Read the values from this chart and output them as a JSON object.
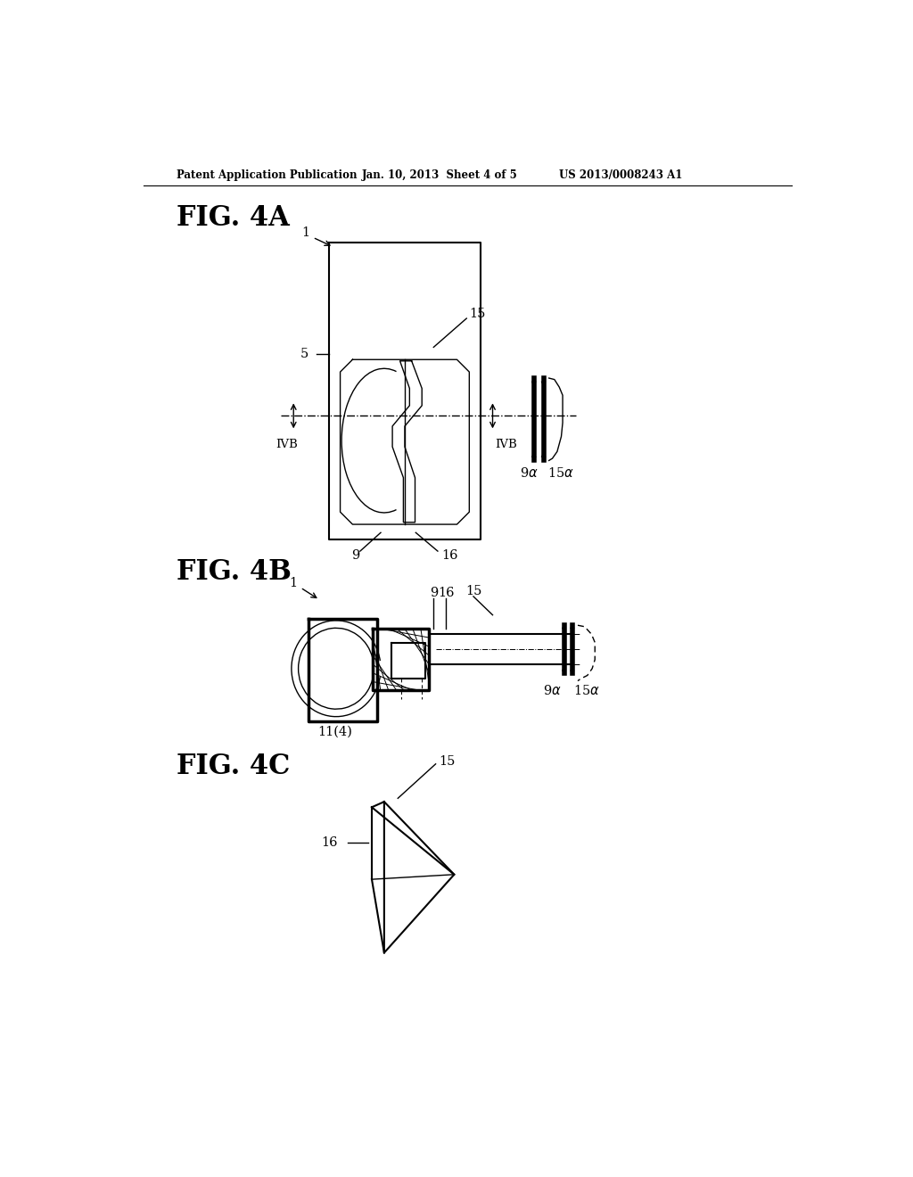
{
  "bg_color": "#ffffff",
  "header_left": "Patent Application Publication",
  "header_mid": "Jan. 10, 2013  Sheet 4 of 5",
  "header_right": "US 2013/0008243 A1",
  "fig4a_label": "FIG. 4A",
  "fig4b_label": "FIG. 4B",
  "fig4c_label": "FIG. 4C"
}
